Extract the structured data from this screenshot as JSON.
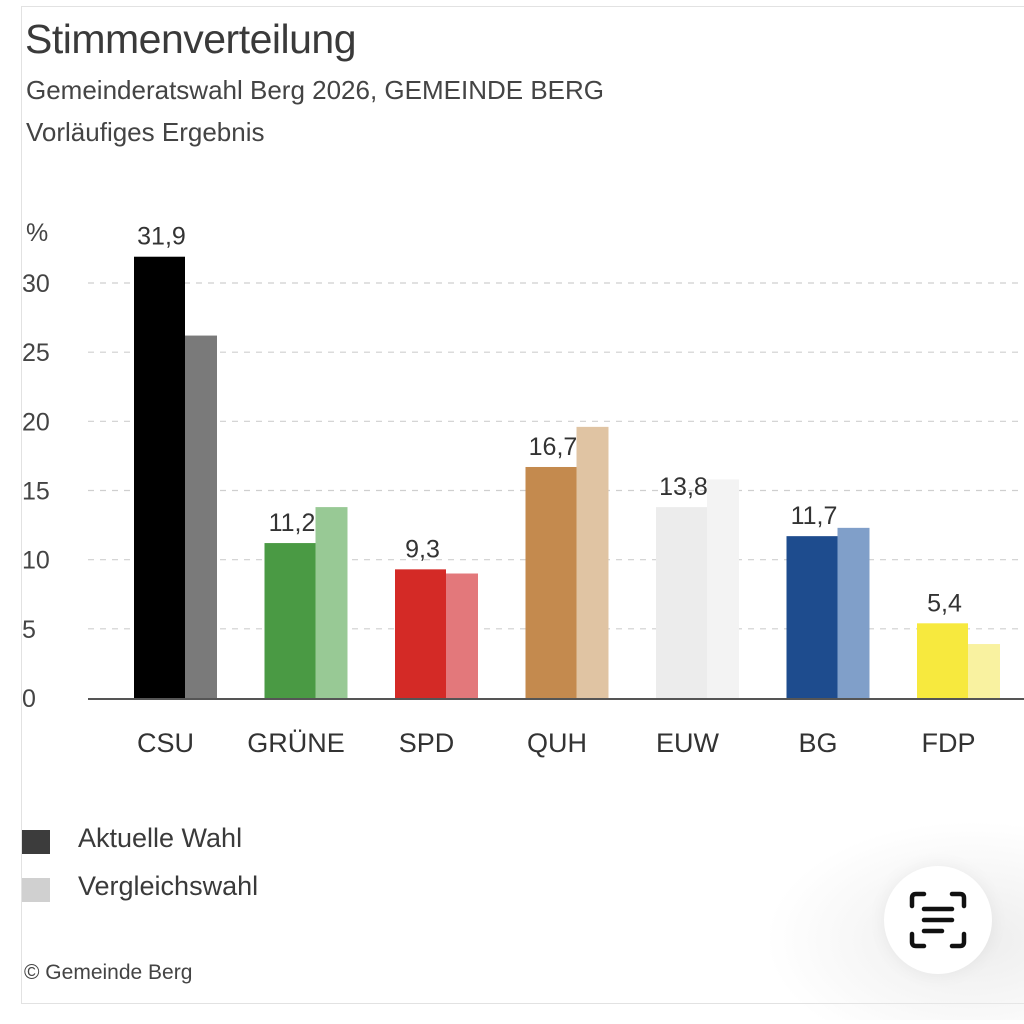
{
  "header": {
    "title": "Stimmenverteilung",
    "subtitle": "Gemeinderatswahl Berg 2026, GEMEINDE BERG",
    "status": "Vorläufiges Ergebnis"
  },
  "chart_data": {
    "type": "bar",
    "title": "Stimmenverteilung",
    "subtitle": "Gemeinderatswahl Berg 2026, GEMEINDE BERG",
    "xlabel": "",
    "ylabel": "%",
    "ylim": [
      0,
      32
    ],
    "yticks": [
      0,
      5,
      10,
      15,
      20,
      25,
      30
    ],
    "ytick_labels": [
      "0",
      "5",
      "10",
      "15",
      "20",
      "25",
      "30"
    ],
    "grid": true,
    "categories": [
      "CSU",
      "GRÜNE",
      "SPD",
      "QUH",
      "EUW",
      "BG",
      "FDP"
    ],
    "series": [
      {
        "name": "Aktuelle Wahl",
        "values": [
          31.9,
          11.2,
          9.3,
          16.7,
          13.8,
          11.7,
          5.4
        ],
        "labels": [
          "31,9",
          "11,2",
          "9,3",
          "16,7",
          "13,8",
          "11,7",
          "5,4"
        ],
        "colors": [
          "#000000",
          "#4a9a44",
          "#d42a26",
          "#c48a4e",
          "#ececec",
          "#1e4c8e",
          "#f7e93e"
        ]
      },
      {
        "name": "Vergleichswahl",
        "values": [
          26.2,
          13.8,
          9.0,
          19.6,
          15.8,
          12.3,
          3.9
        ],
        "colors": [
          "#7a7a7a",
          "#98c995",
          "#e3787b",
          "#e0c4a3",
          "#f3f3f3",
          "#809fc9",
          "#f9f2a0"
        ]
      }
    ],
    "legend": {
      "position": "bottom-left",
      "entries": [
        {
          "label": "Aktuelle Wahl",
          "color": "#3c3c3c"
        },
        {
          "label": "Vergleichswahl",
          "color": "#d0d0d0"
        }
      ]
    }
  },
  "footer": {
    "copyright": "© Gemeinde Berg"
  },
  "overlay": {
    "scan_button_icon": "text-scan-icon"
  }
}
